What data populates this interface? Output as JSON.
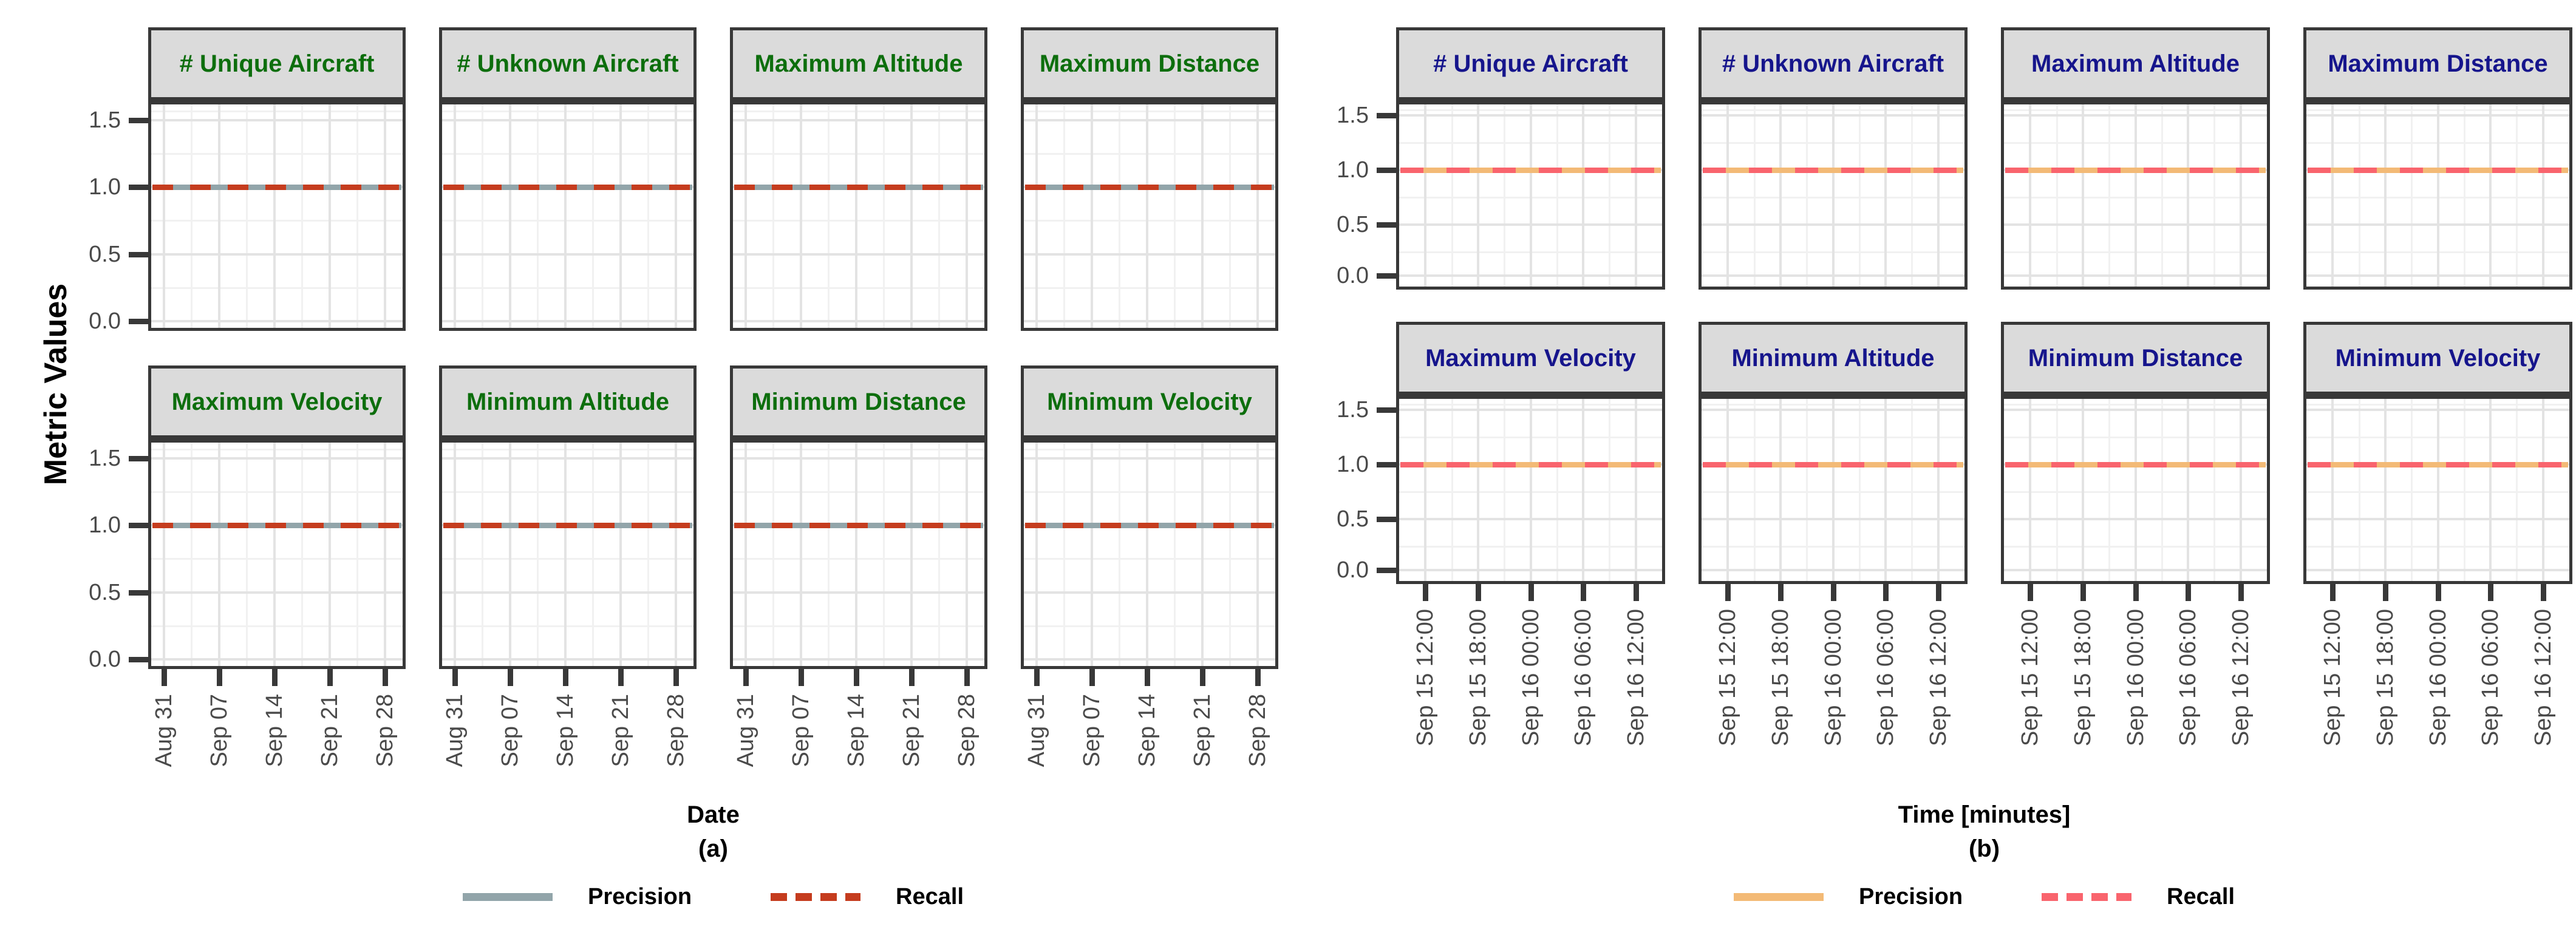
{
  "ylabel": "Metric Values",
  "legend": {
    "precision_label": "Precision",
    "recall_label": "Recall"
  },
  "panels": [
    {
      "caption": "(a)",
      "xlabel": "Date",
      "facet_titles": [
        "# Unique Aircraft",
        "# Unknown Aircraft",
        "Maximum Altitude",
        "Maximum Distance",
        "Maximum Velocity",
        "Minimum Altitude",
        "Minimum Distance",
        "Minimum Velocity"
      ],
      "x_ticks": [
        "Aug 31",
        "Sep 07",
        "Sep 14",
        "Sep 21",
        "Sep 28"
      ],
      "y_ticks": [
        "1.5",
        "1.0",
        "0.5",
        "0.0"
      ],
      "colors": {
        "title": "#0D6E0D",
        "precision": "#92A5AA",
        "recall": "#C53C1E"
      }
    },
    {
      "caption": "(b)",
      "xlabel": "Time [minutes]",
      "facet_titles": [
        "# Unique Aircraft",
        "# Unknown Aircraft",
        "Maximum Altitude",
        "Maximum Distance",
        "Maximum Velocity",
        "Minimum Altitude",
        "Minimum Distance",
        "Minimum Velocity"
      ],
      "x_ticks": [
        "Sep 15 12:00",
        "Sep 15 18:00",
        "Sep 16 00:00",
        "Sep 16 06:00",
        "Sep 16 12:00"
      ],
      "y_ticks": [
        "1.5",
        "1.0",
        "0.5",
        "0.0"
      ],
      "colors": {
        "title": "#16158C",
        "precision": "#F3BA76",
        "recall": "#F9646D"
      }
    }
  ],
  "chart_data": [
    {
      "type": "line",
      "panel": "(a)",
      "title": "",
      "facets": [
        "# Unique Aircraft",
        "# Unknown Aircraft",
        "Maximum Altitude",
        "Maximum Distance",
        "Maximum Velocity",
        "Minimum Altitude",
        "Minimum Distance",
        "Minimum Velocity"
      ],
      "xlabel": "Date",
      "ylabel": "Metric Values",
      "x_tick_labels": [
        "Aug 31",
        "Sep 07",
        "Sep 14",
        "Sep 21",
        "Sep 28"
      ],
      "y_ticks": [
        0.0,
        0.5,
        1.0,
        1.5
      ],
      "ylim": [
        -0.05,
        1.6
      ],
      "grid": true,
      "legend_position": "bottom",
      "series": [
        {
          "name": "Precision",
          "style": "solid",
          "color": "#92A5AA",
          "y": 1.0,
          "values": "constant 1.0 across Aug 31 - Sep 28 in all 8 facets"
        },
        {
          "name": "Recall",
          "style": "dashed",
          "color": "#C53C1E",
          "y": 1.0,
          "values": "constant 1.0 across Aug 31 - Sep 28 in all 8 facets"
        }
      ]
    },
    {
      "type": "line",
      "panel": "(b)",
      "title": "",
      "facets": [
        "# Unique Aircraft",
        "# Unknown Aircraft",
        "Maximum Altitude",
        "Maximum Distance",
        "Maximum Velocity",
        "Minimum Altitude",
        "Minimum Distance",
        "Minimum Velocity"
      ],
      "xlabel": "Time [minutes]",
      "ylabel": "",
      "x_tick_labels": [
        "Sep 15 12:00",
        "Sep 15 18:00",
        "Sep 16 00:00",
        "Sep 16 06:00",
        "Sep 16 12:00"
      ],
      "y_ticks": [
        0.0,
        0.5,
        1.0,
        1.5
      ],
      "ylim": [
        -0.1,
        1.6
      ],
      "grid": true,
      "legend_position": "bottom",
      "series": [
        {
          "name": "Precision",
          "style": "solid",
          "color": "#F3BA76",
          "y": 1.0,
          "values": "constant 1.0 across Sep 15 12:00 - Sep 16 12:00 in all 8 facets"
        },
        {
          "name": "Recall",
          "style": "dashed",
          "color": "#F9646D",
          "y": 1.0,
          "values": "constant 1.0 across Sep 15 12:00 - Sep 16 12:00 in all 8 facets"
        }
      ]
    }
  ]
}
